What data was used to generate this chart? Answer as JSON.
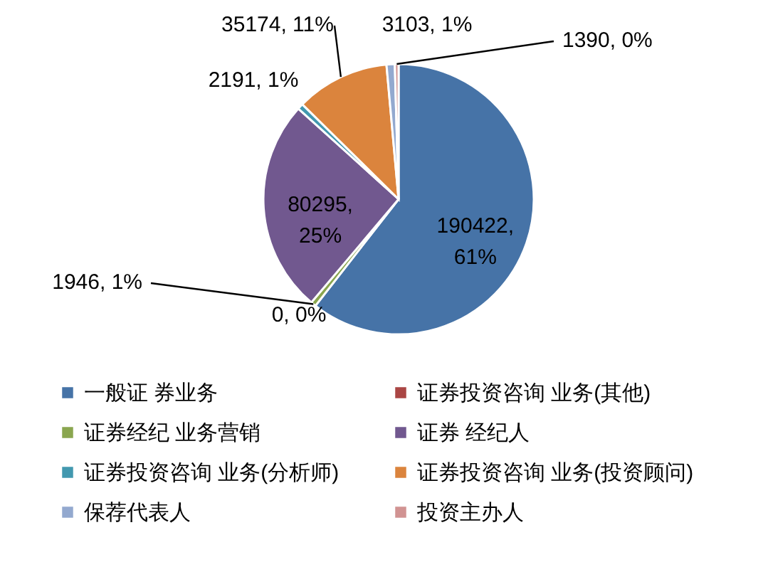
{
  "chart_data": {
    "type": "pie",
    "categories": [
      "一般证 券业务",
      "证券投资咨询 业务(其他)",
      "证券经纪 业务营销",
      "证券 经纪人",
      "证券投资咨询 业务(分析师)",
      "证券投资咨询 业务(投资顾问)",
      "保荐代表人",
      "投资主办人"
    ],
    "values": [
      190422,
      0,
      1946,
      80295,
      2191,
      35174,
      3103,
      1390
    ],
    "colors": [
      "#4673a7",
      "#aa4644",
      "#8aa64f",
      "#71588f",
      "#4298af",
      "#db843d",
      "#93a9cf",
      "#d19392"
    ],
    "value_labels": [
      "190422, 61%",
      "0, 0%",
      "1946, 1%",
      "80295, 25%",
      "2191, 1%",
      "35174, 11%",
      "3103, 1%",
      "1390, 0%"
    ],
    "legend": "bottom"
  }
}
